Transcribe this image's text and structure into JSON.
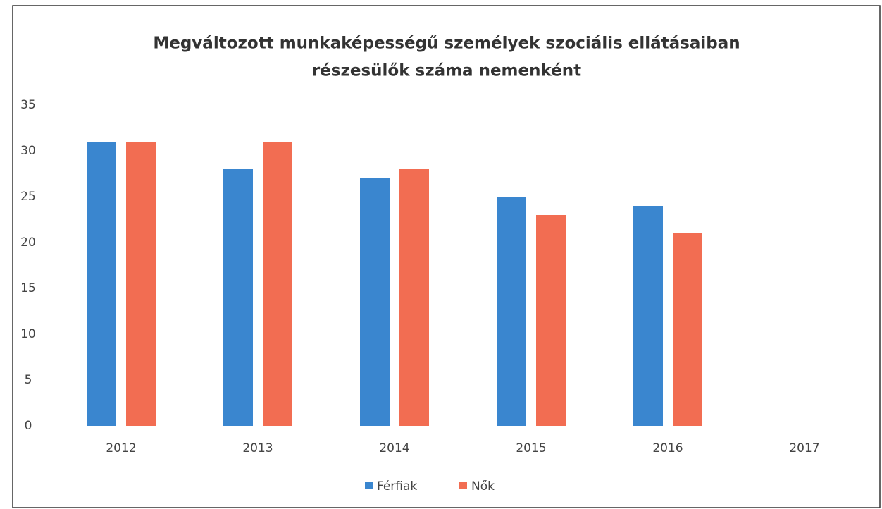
{
  "chart_data": {
    "type": "bar",
    "title": [
      "Megváltozott munkaképességű személyek szociális ellátásaiban",
      "részesülők száma nemenként"
    ],
    "categories": [
      "2012",
      "2013",
      "2014",
      "2015",
      "2016",
      "2017"
    ],
    "series": [
      {
        "name": "Férfiak",
        "color": "#3a86cf",
        "values": [
          31,
          28,
          27,
          25,
          24,
          null
        ]
      },
      {
        "name": "Nők",
        "color": "#f26d52",
        "values": [
          31,
          31,
          28,
          23,
          21,
          null
        ]
      }
    ],
    "ylim": [
      0,
      35
    ],
    "yticks": [
      0,
      5,
      10,
      15,
      20,
      25,
      30,
      35
    ],
    "grid": false,
    "legend": "bottom"
  }
}
